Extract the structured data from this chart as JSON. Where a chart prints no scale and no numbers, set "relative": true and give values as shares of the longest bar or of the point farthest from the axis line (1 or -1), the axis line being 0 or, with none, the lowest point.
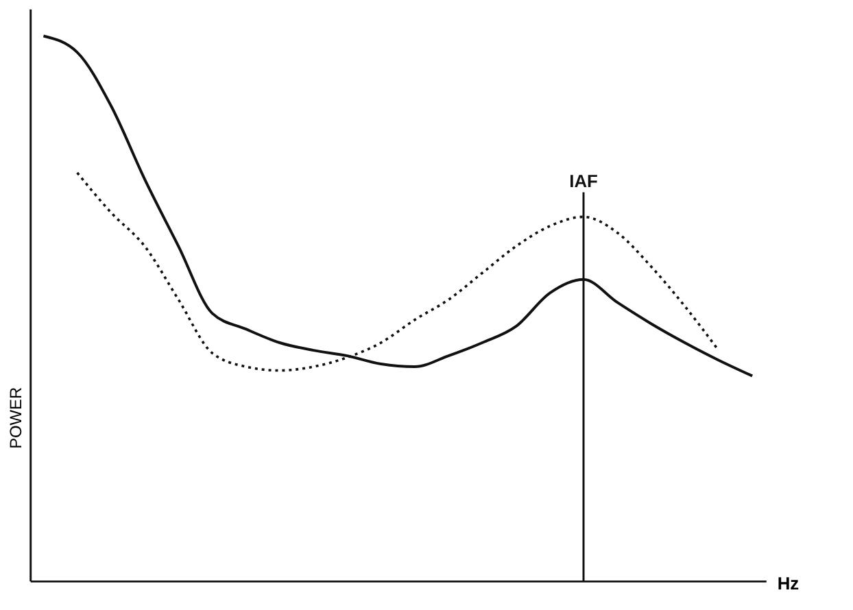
{
  "chart_data": {
    "type": "line",
    "relative": true,
    "xlabel": "Hz",
    "ylabel": "POWER",
    "categories": [
      null,
      null,
      null,
      null,
      null,
      null,
      null,
      null,
      null,
      null,
      null,
      null,
      null,
      null,
      null,
      null,
      null,
      null,
      null,
      null,
      null,
      null
    ],
    "series": [
      {
        "color": "#111111",
        "line_style": "solid",
        "values": [
          1.0,
          0.97,
          0.872,
          0.737,
          0.614,
          0.491,
          0.462,
          0.437,
          0.423,
          0.413,
          0.398,
          0.393,
          0.413,
          0.437,
          0.467,
          0.528,
          0.553,
          0.511,
          0.472,
          0.437,
          0.405,
          0.376
        ]
      },
      {
        "color": "#111111",
        "line_style": "dotted",
        "values": [
          null,
          0.749,
          0.676,
          0.614,
          0.516,
          0.418,
          0.393,
          0.386,
          0.393,
          0.41,
          0.437,
          0.479,
          0.516,
          0.565,
          0.614,
          0.651,
          0.668,
          0.639,
          0.577,
          0.504,
          0.423,
          null
        ]
      }
    ],
    "annotations": [
      "IAF"
    ]
  }
}
